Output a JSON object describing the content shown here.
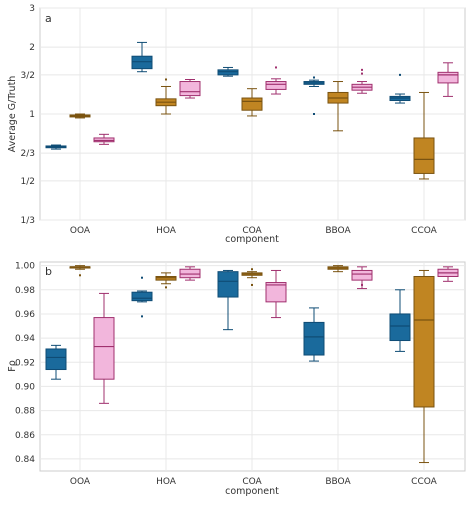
{
  "colors": {
    "blue_fill": "#1a6a9c",
    "blue_line": "#0f4c75",
    "gold_fill": "#c08522",
    "gold_line": "#7a5310",
    "pink_fill": "#f2b6dc",
    "pink_line": "#a0306e",
    "grid": "#e8e8e8",
    "frame": "#cccccc"
  },
  "chart_data": [
    {
      "type": "box",
      "panel_label": "a",
      "xlabel": "component",
      "ylabel": "Average G/Truth",
      "y_scale": "log",
      "ylim": [
        0.3333,
        3.0
      ],
      "yticks": [
        0.3333,
        0.5,
        0.6667,
        1,
        1.5,
        2,
        3
      ],
      "ytick_labels": [
        "1/3",
        "1/2",
        "2/3",
        "1",
        "3/2",
        "2",
        "3"
      ],
      "grid": true,
      "categories": [
        "OOA",
        "HOA",
        "COA",
        "BBOA",
        "CCOA"
      ],
      "series": [
        {
          "color_key": "blue",
          "boxes": [
            {
              "whislo": 0.695,
              "q1": 0.705,
              "med": 0.712,
              "q3": 0.718,
              "whishi": 0.725,
              "fliers": []
            },
            {
              "whislo": 1.55,
              "q1": 1.6,
              "med": 1.72,
              "q3": 1.82,
              "whishi": 2.1,
              "fliers": []
            },
            {
              "whislo": 1.48,
              "q1": 1.5,
              "med": 1.55,
              "q3": 1.58,
              "whishi": 1.62,
              "fliers": []
            },
            {
              "whislo": 1.33,
              "q1": 1.36,
              "med": 1.38,
              "q3": 1.4,
              "whishi": 1.42,
              "fliers": [
                1.46,
                1.0
              ]
            },
            {
              "whislo": 1.12,
              "q1": 1.15,
              "med": 1.18,
              "q3": 1.2,
              "whishi": 1.23,
              "fliers": [
                1.5
              ]
            }
          ]
        },
        {
          "color_key": "gold",
          "boxes": [
            {
              "whislo": 0.96,
              "q1": 0.97,
              "med": 0.98,
              "q3": 0.99,
              "whishi": 1.0,
              "fliers": []
            },
            {
              "whislo": 1.0,
              "q1": 1.09,
              "med": 1.13,
              "q3": 1.17,
              "whishi": 1.33,
              "fliers": [
                1.43
              ]
            },
            {
              "whislo": 0.98,
              "q1": 1.04,
              "med": 1.14,
              "q3": 1.18,
              "whishi": 1.3,
              "fliers": []
            },
            {
              "whislo": 0.84,
              "q1": 1.12,
              "med": 1.18,
              "q3": 1.25,
              "whishi": 1.4,
              "fliers": []
            },
            {
              "whislo": 0.51,
              "q1": 0.54,
              "med": 0.625,
              "q3": 0.78,
              "whishi": 1.25,
              "fliers": []
            }
          ]
        },
        {
          "color_key": "pink",
          "boxes": [
            {
              "whislo": 0.73,
              "q1": 0.75,
              "med": 0.76,
              "q3": 0.78,
              "whishi": 0.81,
              "fliers": []
            },
            {
              "whislo": 1.18,
              "q1": 1.21,
              "med": 1.26,
              "q3": 1.4,
              "whishi": 1.43,
              "fliers": []
            },
            {
              "whislo": 1.23,
              "q1": 1.29,
              "med": 1.36,
              "q3": 1.4,
              "whishi": 1.44,
              "fliers": [
                1.62
              ]
            },
            {
              "whislo": 1.24,
              "q1": 1.28,
              "med": 1.32,
              "q3": 1.36,
              "whishi": 1.4,
              "fliers": [
                1.52,
                1.58
              ]
            },
            {
              "whislo": 1.2,
              "q1": 1.38,
              "med": 1.5,
              "q3": 1.54,
              "whishi": 1.7,
              "fliers": []
            }
          ]
        }
      ]
    },
    {
      "type": "box",
      "panel_label": "b",
      "xlabel": "component",
      "ylabel": "Fρ",
      "y_scale": "linear",
      "ylim": [
        0.83,
        1.003
      ],
      "yticks": [
        0.84,
        0.86,
        0.88,
        0.9,
        0.92,
        0.94,
        0.96,
        0.98,
        1.0
      ],
      "ytick_labels": [
        "0.84",
        "0.86",
        "0.88",
        "0.90",
        "0.92",
        "0.94",
        "0.96",
        "0.98",
        "1.00"
      ],
      "grid": true,
      "categories": [
        "OOA",
        "HOA",
        "COA",
        "BBOA",
        "CCOA"
      ],
      "series": [
        {
          "color_key": "blue",
          "boxes": [
            {
              "whislo": 0.906,
              "q1": 0.914,
              "med": 0.924,
              "q3": 0.931,
              "whishi": 0.934,
              "fliers": []
            },
            {
              "whislo": 0.97,
              "q1": 0.971,
              "med": 0.973,
              "q3": 0.978,
              "whishi": 0.979,
              "fliers": [
                0.958,
                0.99
              ]
            },
            {
              "whislo": 0.947,
              "q1": 0.974,
              "med": 0.987,
              "q3": 0.995,
              "whishi": 0.996,
              "fliers": []
            },
            {
              "whislo": 0.921,
              "q1": 0.926,
              "med": 0.941,
              "q3": 0.953,
              "whishi": 0.965,
              "fliers": []
            },
            {
              "whislo": 0.929,
              "q1": 0.938,
              "med": 0.95,
              "q3": 0.96,
              "whishi": 0.98,
              "fliers": []
            }
          ]
        },
        {
          "color_key": "gold",
          "boxes": [
            {
              "whislo": 0.997,
              "q1": 0.998,
              "med": 0.999,
              "q3": 0.999,
              "whishi": 1.0,
              "fliers": [
                0.992
              ]
            },
            {
              "whislo": 0.985,
              "q1": 0.988,
              "med": 0.99,
              "q3": 0.991,
              "whishi": 0.994,
              "fliers": [
                0.982
              ]
            },
            {
              "whislo": 0.99,
              "q1": 0.992,
              "med": 0.993,
              "q3": 0.994,
              "whishi": 0.995,
              "fliers": [
                0.997,
                0.984
              ]
            },
            {
              "whislo": 0.995,
              "q1": 0.997,
              "med": 0.998,
              "q3": 0.999,
              "whishi": 1.0,
              "fliers": []
            },
            {
              "whislo": 0.837,
              "q1": 0.883,
              "med": 0.955,
              "q3": 0.991,
              "whishi": 0.996,
              "fliers": []
            }
          ]
        },
        {
          "color_key": "pink",
          "boxes": [
            {
              "whislo": 0.886,
              "q1": 0.906,
              "med": 0.933,
              "q3": 0.957,
              "whishi": 0.977,
              "fliers": []
            },
            {
              "whislo": 0.988,
              "q1": 0.99,
              "med": 0.993,
              "q3": 0.997,
              "whishi": 0.999,
              "fliers": []
            },
            {
              "whislo": 0.957,
              "q1": 0.97,
              "med": 0.984,
              "q3": 0.986,
              "whishi": 0.996,
              "fliers": []
            },
            {
              "whislo": 0.981,
              "q1": 0.988,
              "med": 0.993,
              "q3": 0.996,
              "whishi": 0.999,
              "fliers": [
                0.984
              ]
            },
            {
              "whislo": 0.987,
              "q1": 0.991,
              "med": 0.994,
              "q3": 0.997,
              "whishi": 0.999,
              "fliers": []
            }
          ]
        }
      ]
    }
  ]
}
